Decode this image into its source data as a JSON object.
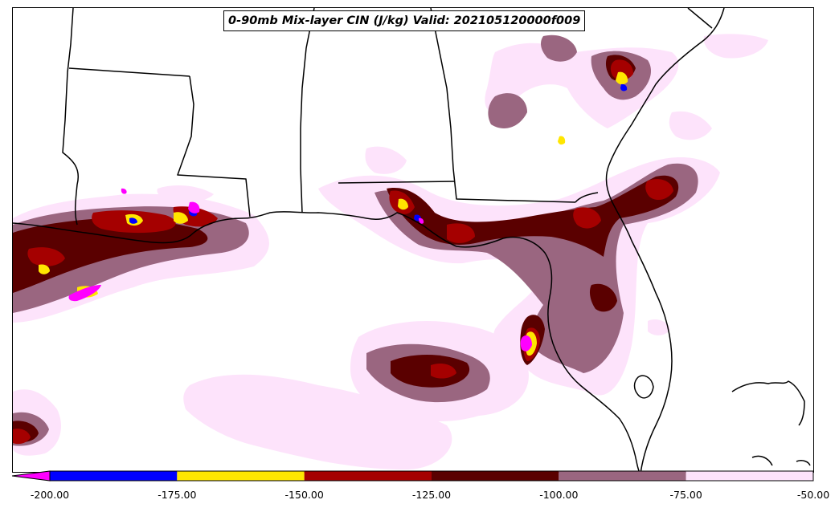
{
  "title": "0-90mb Mix-layer CIN (J/kg) Valid: 202105120000f009",
  "colorbar": {
    "extend": "min",
    "ticks": [
      "-200.00",
      "-175.00",
      "-150.00",
      "-125.00",
      "-100.00",
      "-75.00",
      "-50.00"
    ],
    "levels": [
      {
        "range": [
          -200,
          -175
        ],
        "color": "#0000ff"
      },
      {
        "range": [
          -175,
          -150
        ],
        "color": "#ffe600"
      },
      {
        "range": [
          -150,
          -125
        ],
        "color": "#a50000"
      },
      {
        "range": [
          -125,
          -100
        ],
        "color": "#5a0000"
      },
      {
        "range": [
          -100,
          -75
        ],
        "color": "#9a6680"
      },
      {
        "range": [
          -75,
          -50
        ],
        "color": "#fde3fb"
      }
    ],
    "under_color": "#ff00ff"
  }
}
